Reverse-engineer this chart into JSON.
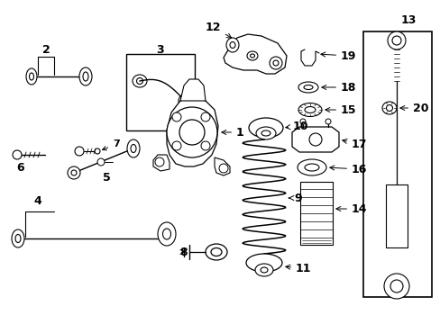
{
  "bg_color": "#ffffff",
  "line_color": "#000000",
  "parts_order": [
    1,
    2,
    3,
    4,
    5,
    6,
    7,
    8,
    9,
    10,
    11,
    12,
    13,
    14,
    15,
    16,
    17,
    18,
    19,
    20
  ]
}
